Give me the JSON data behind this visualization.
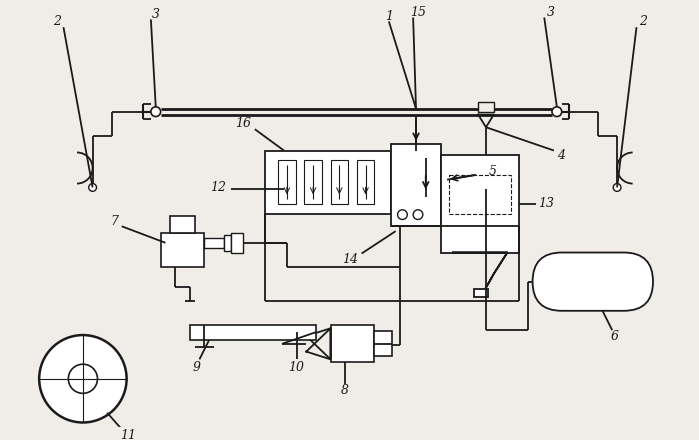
{
  "bg_color": "#f0ede8",
  "line_color": "#1a1a1a",
  "lw": 1.3
}
